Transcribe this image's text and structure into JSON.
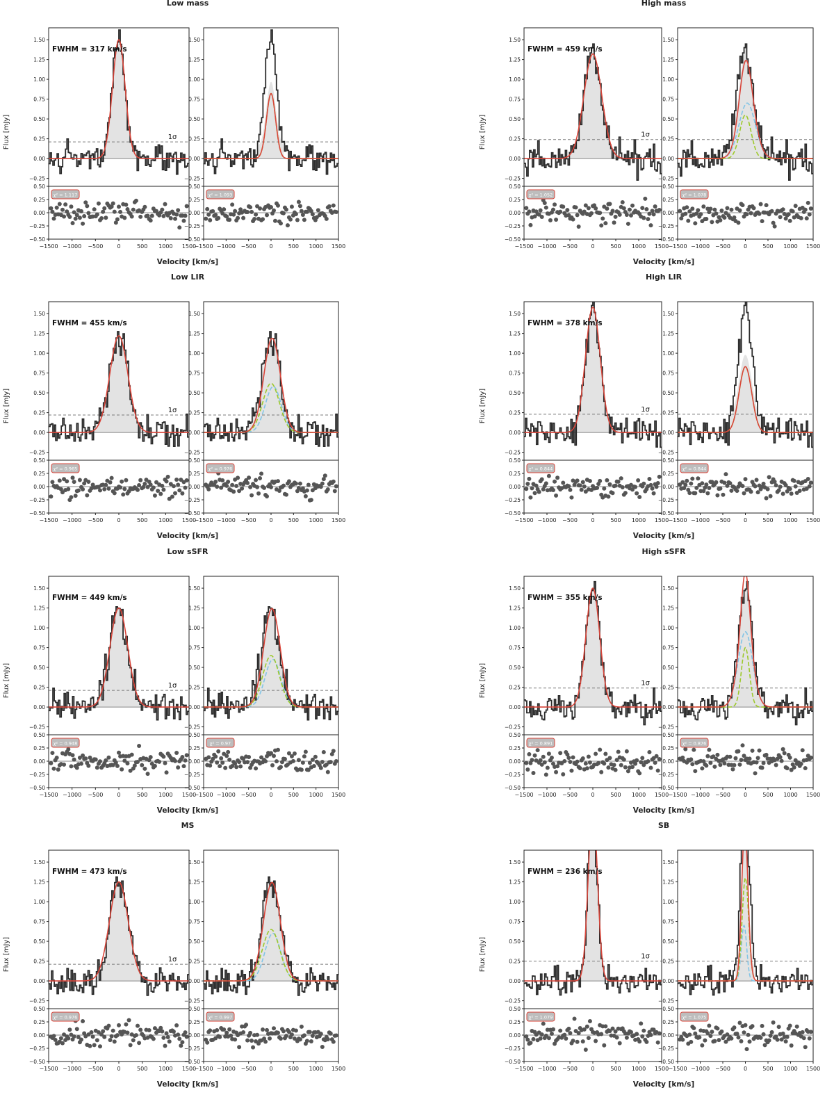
{
  "figure": {
    "xlabel": "Velocity [km/s]",
    "ylabel": "Flux [mJy]",
    "sigma_label": "1σ",
    "colors": {
      "spectrum": "#2b2b2b",
      "fill": "#e3e3e3",
      "fit": "#d9453a",
      "narrow": "#9dc92b",
      "broad": "#82c4e6",
      "sigma": "#7a7a7a",
      "residual": "#555555",
      "chi_box_border": "#d9453a",
      "chi_box_fill": "#bdbdbd"
    }
  },
  "chart_data": [
    {
      "type": "line",
      "title": "Low mass",
      "fwhm_label": "FWHM = 317 km/s",
      "fwhm": 317,
      "peak": 1.5,
      "sigma": 0.21,
      "two_comp": {
        "narrow_amp": 0.82,
        "narrow_fwhm": 240,
        "broad_amp": 0.0,
        "broad_fwhm": 0,
        "broad_center": 0
      },
      "chi2_single": "χ² = 1.117",
      "chi2_double": "χ² = 1.093",
      "xlim": [
        -1500,
        1500
      ],
      "ylim_main": [
        -0.35,
        1.65
      ],
      "ylim_resid": [
        -0.5,
        0.5
      ]
    },
    {
      "type": "line",
      "title": "High mass",
      "fwhm_label": "FWHM = 459 km/s",
      "fwhm": 459,
      "peak": 1.32,
      "sigma": 0.24,
      "two_comp": {
        "narrow_amp": 0.55,
        "narrow_fwhm": 300,
        "broad_amp": 0.7,
        "broad_fwhm": 430,
        "broad_center": 40
      },
      "chi2_single": "χ² = 1.052",
      "chi2_double": "χ² = 1.078",
      "xlim": [
        -1500,
        1500
      ],
      "ylim_main": [
        -0.35,
        1.65
      ],
      "ylim_resid": [
        -0.5,
        0.5
      ]
    },
    {
      "type": "line",
      "title": "Low LIR",
      "fwhm_label": "FWHM = 455 km/s",
      "fwhm": 455,
      "peak": 1.22,
      "sigma": 0.22,
      "two_comp": {
        "narrow_amp": 0.62,
        "narrow_fwhm": 440,
        "broad_amp": 0.58,
        "broad_fwhm": 420,
        "broad_center": 50
      },
      "chi2_single": "χ² = 0.965",
      "chi2_double": "χ² = 0.976",
      "xlim": [
        -1500,
        1500
      ],
      "ylim_main": [
        -0.35,
        1.65
      ],
      "ylim_resid": [
        -0.5,
        0.5
      ]
    },
    {
      "type": "line",
      "title": "High LIR",
      "fwhm_label": "FWHM = 378 km/s",
      "fwhm": 378,
      "peak": 1.58,
      "sigma": 0.23,
      "two_comp": {
        "narrow_amp": 0.83,
        "narrow_fwhm": 330,
        "broad_amp": 0.0,
        "broad_fwhm": 0,
        "broad_center": 0
      },
      "chi2_single": "χ² = 0.844",
      "chi2_double": "χ² = 0.844",
      "xlim": [
        -1500,
        1500
      ],
      "ylim_main": [
        -0.35,
        1.65
      ],
      "ylim_resid": [
        -0.5,
        0.5
      ]
    },
    {
      "type": "line",
      "title": "Low sSFR",
      "fwhm_label": "FWHM = 449 km/s",
      "fwhm": 449,
      "peak": 1.25,
      "sigma": 0.21,
      "two_comp": {
        "narrow_amp": 0.65,
        "narrow_fwhm": 440,
        "broad_amp": 0.6,
        "broad_fwhm": 420,
        "broad_center": 40
      },
      "chi2_single": "χ² = 0.948",
      "chi2_double": "χ² = 0.97",
      "xlim": [
        -1500,
        1500
      ],
      "ylim_main": [
        -0.35,
        1.65
      ],
      "ylim_resid": [
        -0.5,
        0.5
      ]
    },
    {
      "type": "line",
      "title": "High sSFR",
      "fwhm_label": "FWHM = 355 km/s",
      "fwhm": 355,
      "peak": 1.5,
      "sigma": 0.24,
      "two_comp": {
        "narrow_amp": 0.75,
        "narrow_fwhm": 210,
        "broad_amp": 0.95,
        "broad_fwhm": 380,
        "broad_center": 0
      },
      "chi2_single": "χ² = 0.891",
      "chi2_double": "χ² = 0.876",
      "xlim": [
        -1500,
        1500
      ],
      "ylim_main": [
        -0.35,
        1.65
      ],
      "ylim_resid": [
        -0.5,
        0.5
      ]
    },
    {
      "type": "line",
      "title": "MS",
      "fwhm_label": "FWHM = 473 km/s",
      "fwhm": 473,
      "peak": 1.25,
      "sigma": 0.21,
      "two_comp": {
        "narrow_amp": 0.65,
        "narrow_fwhm": 460,
        "broad_amp": 0.6,
        "broad_fwhm": 420,
        "broad_center": 40
      },
      "chi2_single": "χ² = 0.976",
      "chi2_double": "χ² = 0.997",
      "xlim": [
        -1500,
        1500
      ],
      "ylim_main": [
        -0.35,
        1.65
      ],
      "ylim_resid": [
        -0.5,
        0.5
      ]
    },
    {
      "type": "line",
      "title": "SB",
      "fwhm_label": "FWHM = 236 km/s",
      "fwhm": 236,
      "peak": 2.2,
      "sigma": 0.25,
      "two_comp": {
        "narrow_amp": 1.3,
        "narrow_fwhm": 170,
        "broad_amp": 0.7,
        "broad_fwhm": 140,
        "broad_center": -30
      },
      "chi2_single": "χ² = 1.079",
      "chi2_double": "χ² = 1.075",
      "xlim": [
        -1500,
        1500
      ],
      "ylim_main": [
        -0.35,
        1.65
      ],
      "ylim_resid": [
        -0.5,
        0.5
      ]
    }
  ],
  "axes": {
    "main_yticks": [
      "−0.25",
      "0.00",
      "0.25",
      "0.50",
      "0.75",
      "1.00",
      "1.25",
      "1.50"
    ],
    "main_ytick_values": [
      -0.25,
      0,
      0.25,
      0.5,
      0.75,
      1.0,
      1.25,
      1.5
    ],
    "resid_yticks": [
      "−0.50",
      "−0.25",
      "0.00",
      "0.25",
      "0.50"
    ],
    "resid_ytick_values": [
      -0.5,
      -0.25,
      0,
      0.25,
      0.5
    ],
    "xticks": [
      "−1500",
      "−1000",
      "−500",
      "0",
      "500",
      "1000",
      "1500"
    ],
    "xtick_values": [
      -1500,
      -1000,
      -500,
      0,
      500,
      1000,
      1500
    ]
  }
}
